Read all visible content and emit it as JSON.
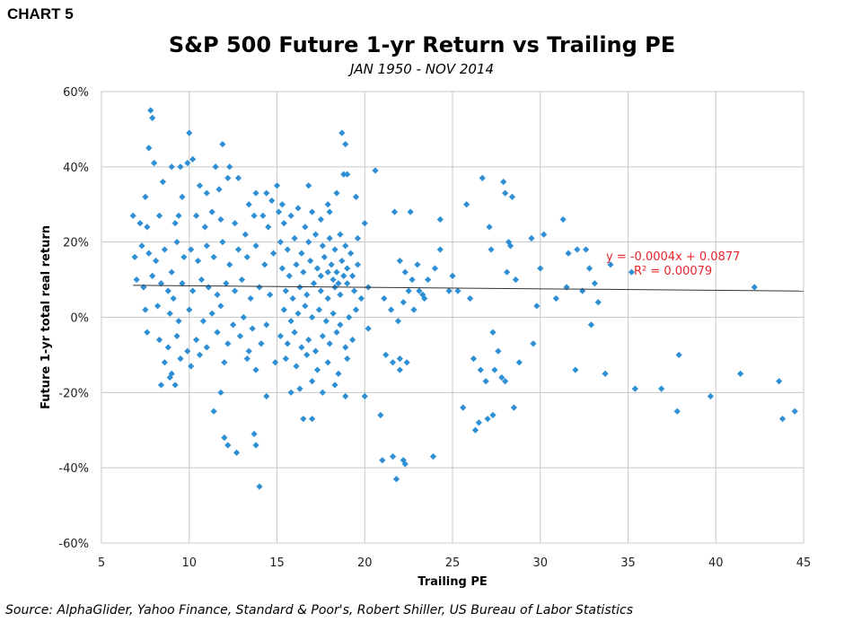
{
  "header": {
    "chart_label": "CHART 5",
    "title": "S&P 500 Future 1-yr Return vs Trailing PE",
    "subtitle": "JAN 1950 - NOV 2014"
  },
  "footer": {
    "source": "Source: AlphaGlider, Yahoo Finance, Standard & Poor's, Robert Shiller, US Bureau of Labor Statistics"
  },
  "colors": {
    "points": "#2e8fd4",
    "trendline": "#333333",
    "trend_text": "#e8262b",
    "grid": "#c8c8c8"
  },
  "chart_data": {
    "type": "scatter",
    "title": "S&P 500 Future 1-yr Return vs Trailing PE",
    "subtitle": "JAN 1950 - NOV 2014",
    "xlabel": "Trailing PE",
    "ylabel": "Future 1-yr total real return",
    "xlim": [
      5,
      45
    ],
    "ylim": [
      -0.6,
      0.6
    ],
    "x_ticks": [
      "5",
      "10",
      "15",
      "20",
      "25",
      "30",
      "35",
      "40",
      "45"
    ],
    "y_ticks": [
      "60%",
      "40%",
      "20%",
      "0%",
      "-20%",
      "-40%",
      "-60%"
    ],
    "grid": true,
    "marker": "diamond",
    "trendline": {
      "slope": -0.0004,
      "intercept": 0.0877,
      "equation": "y = -0.0004x + 0.0877",
      "r_squared": "R² = 0.00079"
    },
    "points": [
      [
        7.8,
        0.55
      ],
      [
        7.9,
        0.53
      ],
      [
        10.0,
        0.49
      ],
      [
        7.7,
        0.45
      ],
      [
        11.9,
        0.46
      ],
      [
        8.0,
        0.41
      ],
      [
        9.5,
        0.4
      ],
      [
        9.9,
        0.41
      ],
      [
        10.2,
        0.42
      ],
      [
        11.5,
        0.4
      ],
      [
        12.3,
        0.4
      ],
      [
        8.5,
        0.36
      ],
      [
        9.0,
        0.4
      ],
      [
        12.8,
        0.37
      ],
      [
        7.5,
        0.32
      ],
      [
        9.6,
        0.32
      ],
      [
        10.6,
        0.35
      ],
      [
        11.0,
        0.33
      ],
      [
        11.7,
        0.34
      ],
      [
        12.2,
        0.37
      ],
      [
        13.4,
        0.3
      ],
      [
        13.8,
        0.33
      ],
      [
        14.4,
        0.33
      ],
      [
        15.0,
        0.35
      ],
      [
        14.7,
        0.31
      ],
      [
        15.3,
        0.3
      ],
      [
        6.8,
        0.27
      ],
      [
        7.2,
        0.25
      ],
      [
        7.6,
        0.24
      ],
      [
        8.3,
        0.27
      ],
      [
        9.2,
        0.25
      ],
      [
        9.4,
        0.27
      ],
      [
        10.4,
        0.27
      ],
      [
        10.9,
        0.24
      ],
      [
        11.3,
        0.28
      ],
      [
        11.8,
        0.26
      ],
      [
        12.6,
        0.25
      ],
      [
        13.2,
        0.22
      ],
      [
        13.7,
        0.27
      ],
      [
        14.2,
        0.27
      ],
      [
        14.5,
        0.24
      ],
      [
        6.9,
        0.16
      ],
      [
        7.3,
        0.19
      ],
      [
        7.7,
        0.17
      ],
      [
        8.1,
        0.15
      ],
      [
        8.6,
        0.18
      ],
      [
        9.0,
        0.12
      ],
      [
        9.3,
        0.2
      ],
      [
        9.7,
        0.16
      ],
      [
        10.1,
        0.18
      ],
      [
        10.5,
        0.15
      ],
      [
        11.0,
        0.19
      ],
      [
        11.4,
        0.16
      ],
      [
        11.9,
        0.2
      ],
      [
        12.3,
        0.14
      ],
      [
        12.8,
        0.18
      ],
      [
        13.3,
        0.16
      ],
      [
        13.8,
        0.19
      ],
      [
        14.3,
        0.14
      ],
      [
        14.8,
        0.17
      ],
      [
        7.0,
        0.1
      ],
      [
        7.4,
        0.08
      ],
      [
        7.9,
        0.11
      ],
      [
        8.4,
        0.09
      ],
      [
        8.8,
        0.07
      ],
      [
        9.1,
        0.05
      ],
      [
        9.6,
        0.09
      ],
      [
        10.2,
        0.07
      ],
      [
        10.7,
        0.1
      ],
      [
        11.1,
        0.08
      ],
      [
        11.6,
        0.06
      ],
      [
        12.1,
        0.09
      ],
      [
        12.6,
        0.07
      ],
      [
        13.0,
        0.1
      ],
      [
        13.5,
        0.05
      ],
      [
        14.0,
        0.08
      ],
      [
        14.6,
        0.06
      ],
      [
        7.5,
        0.02
      ],
      [
        8.2,
        0.03
      ],
      [
        8.9,
        0.01
      ],
      [
        9.4,
        -0.01
      ],
      [
        10.0,
        0.02
      ],
      [
        10.8,
        -0.01
      ],
      [
        11.3,
        0.01
      ],
      [
        11.8,
        0.03
      ],
      [
        12.5,
        -0.02
      ],
      [
        13.1,
        0.0
      ],
      [
        13.6,
        -0.03
      ],
      [
        14.4,
        -0.02
      ],
      [
        7.6,
        -0.04
      ],
      [
        8.3,
        -0.06
      ],
      [
        8.8,
        -0.08
      ],
      [
        9.3,
        -0.05
      ],
      [
        9.9,
        -0.09
      ],
      [
        10.4,
        -0.06
      ],
      [
        11.0,
        -0.08
      ],
      [
        11.6,
        -0.04
      ],
      [
        12.2,
        -0.07
      ],
      [
        12.9,
        -0.05
      ],
      [
        13.4,
        -0.09
      ],
      [
        14.1,
        -0.07
      ],
      [
        8.6,
        -0.12
      ],
      [
        9.0,
        -0.15
      ],
      [
        9.5,
        -0.11
      ],
      [
        10.1,
        -0.13
      ],
      [
        10.6,
        -0.1
      ],
      [
        12.0,
        -0.12
      ],
      [
        13.3,
        -0.11
      ],
      [
        13.8,
        -0.14
      ],
      [
        14.9,
        -0.12
      ],
      [
        8.4,
        -0.18
      ],
      [
        8.9,
        -0.16
      ],
      [
        9.2,
        -0.18
      ],
      [
        11.8,
        -0.2
      ],
      [
        14.4,
        -0.21
      ],
      [
        11.4,
        -0.25
      ],
      [
        12.0,
        -0.32
      ],
      [
        12.2,
        -0.34
      ],
      [
        12.7,
        -0.36
      ],
      [
        13.7,
        -0.31
      ],
      [
        13.8,
        -0.34
      ],
      [
        14.0,
        -0.45
      ],
      [
        15.1,
        0.28
      ],
      [
        15.4,
        0.25
      ],
      [
        15.8,
        0.27
      ],
      [
        16.2,
        0.29
      ],
      [
        16.6,
        0.24
      ],
      [
        17.0,
        0.28
      ],
      [
        17.5,
        0.26
      ],
      [
        17.9,
        0.3
      ],
      [
        16.8,
        0.35
      ],
      [
        18.0,
        0.28
      ],
      [
        18.4,
        0.33
      ],
      [
        18.8,
        0.38
      ],
      [
        19.0,
        0.38
      ],
      [
        19.5,
        0.32
      ],
      [
        18.7,
        0.49
      ],
      [
        18.9,
        0.46
      ],
      [
        15.2,
        0.2
      ],
      [
        15.6,
        0.18
      ],
      [
        16.0,
        0.21
      ],
      [
        16.4,
        0.17
      ],
      [
        16.8,
        0.2
      ],
      [
        17.2,
        0.22
      ],
      [
        17.6,
        0.19
      ],
      [
        18.0,
        0.21
      ],
      [
        18.3,
        0.18
      ],
      [
        18.6,
        0.22
      ],
      [
        18.9,
        0.19
      ],
      [
        19.2,
        0.17
      ],
      [
        19.6,
        0.21
      ],
      [
        20.0,
        0.25
      ],
      [
        15.3,
        0.13
      ],
      [
        15.7,
        0.11
      ],
      [
        16.1,
        0.14
      ],
      [
        16.5,
        0.12
      ],
      [
        16.9,
        0.15
      ],
      [
        17.3,
        0.13
      ],
      [
        17.7,
        0.16
      ],
      [
        18.1,
        0.14
      ],
      [
        18.4,
        0.12
      ],
      [
        18.7,
        0.15
      ],
      [
        19.0,
        0.13
      ],
      [
        19.3,
        0.11
      ],
      [
        19.6,
        0.14
      ],
      [
        17.5,
        0.11
      ],
      [
        17.9,
        0.12
      ],
      [
        18.2,
        0.1
      ],
      [
        18.5,
        0.09
      ],
      [
        18.8,
        0.11
      ],
      [
        15.5,
        0.07
      ],
      [
        15.9,
        0.05
      ],
      [
        16.3,
        0.08
      ],
      [
        16.7,
        0.06
      ],
      [
        17.1,
        0.09
      ],
      [
        17.5,
        0.07
      ],
      [
        17.9,
        0.05
      ],
      [
        18.3,
        0.08
      ],
      [
        18.6,
        0.06
      ],
      [
        19.0,
        0.09
      ],
      [
        19.4,
        0.07
      ],
      [
        19.8,
        0.05
      ],
      [
        20.2,
        0.08
      ],
      [
        15.4,
        0.02
      ],
      [
        15.8,
        -0.01
      ],
      [
        16.2,
        0.01
      ],
      [
        16.6,
        0.03
      ],
      [
        17.0,
        0.0
      ],
      [
        17.4,
        0.02
      ],
      [
        17.8,
        -0.01
      ],
      [
        18.2,
        0.01
      ],
      [
        18.6,
        -0.02
      ],
      [
        19.1,
        0.0
      ],
      [
        19.5,
        0.02
      ],
      [
        15.2,
        -0.05
      ],
      [
        15.6,
        -0.07
      ],
      [
        16.0,
        -0.04
      ],
      [
        16.4,
        -0.08
      ],
      [
        16.8,
        -0.06
      ],
      [
        17.2,
        -0.09
      ],
      [
        17.6,
        -0.05
      ],
      [
        18.0,
        -0.07
      ],
      [
        18.4,
        -0.04
      ],
      [
        18.9,
        -0.08
      ],
      [
        19.3,
        -0.06
      ],
      [
        15.5,
        -0.11
      ],
      [
        16.1,
        -0.13
      ],
      [
        16.7,
        -0.1
      ],
      [
        17.3,
        -0.14
      ],
      [
        17.9,
        -0.12
      ],
      [
        18.5,
        -0.15
      ],
      [
        19.0,
        -0.11
      ],
      [
        16.3,
        -0.19
      ],
      [
        17.0,
        -0.17
      ],
      [
        17.6,
        -0.2
      ],
      [
        18.3,
        -0.18
      ],
      [
        18.9,
        -0.21
      ],
      [
        15.8,
        -0.2
      ],
      [
        16.5,
        -0.27
      ],
      [
        17.0,
        -0.27
      ],
      [
        20.0,
        -0.21
      ],
      [
        20.6,
        0.39
      ],
      [
        20.2,
        -0.03
      ],
      [
        20.9,
        -0.26
      ],
      [
        21.0,
        -0.38
      ],
      [
        21.6,
        -0.37
      ],
      [
        21.8,
        -0.43
      ],
      [
        22.2,
        -0.38
      ],
      [
        22.3,
        -0.39
      ],
      [
        21.7,
        0.28
      ],
      [
        22.0,
        0.15
      ],
      [
        22.3,
        0.12
      ],
      [
        22.6,
        0.28
      ],
      [
        22.7,
        0.1
      ],
      [
        23.0,
        0.14
      ],
      [
        23.3,
        0.06
      ],
      [
        23.6,
        0.1
      ],
      [
        24.0,
        0.13
      ],
      [
        24.3,
        0.18
      ],
      [
        24.3,
        0.26
      ],
      [
        21.1,
        0.05
      ],
      [
        21.5,
        0.02
      ],
      [
        21.9,
        -0.01
      ],
      [
        22.2,
        0.04
      ],
      [
        22.5,
        0.07
      ],
      [
        22.8,
        0.02
      ],
      [
        23.1,
        0.07
      ],
      [
        23.4,
        0.05
      ],
      [
        21.2,
        -0.1
      ],
      [
        21.6,
        -0.12
      ],
      [
        22.0,
        -0.14
      ],
      [
        22.4,
        -0.12
      ],
      [
        22.0,
        -0.11
      ],
      [
        23.9,
        -0.37
      ],
      [
        25.0,
        0.11
      ],
      [
        24.8,
        0.07
      ],
      [
        25.3,
        0.07
      ],
      [
        25.6,
        -0.24
      ],
      [
        25.8,
        0.3
      ],
      [
        26.0,
        0.05
      ],
      [
        26.2,
        -0.11
      ],
      [
        26.3,
        -0.3
      ],
      [
        26.6,
        -0.14
      ],
      [
        26.7,
        0.37
      ],
      [
        26.9,
        -0.17
      ],
      [
        27.0,
        -0.27
      ],
      [
        27.1,
        0.24
      ],
      [
        27.3,
        -0.04
      ],
      [
        27.4,
        -0.14
      ],
      [
        27.6,
        -0.09
      ],
      [
        27.8,
        -0.16
      ],
      [
        27.9,
        0.36
      ],
      [
        28.0,
        0.33
      ],
      [
        28.0,
        -0.17
      ],
      [
        28.2,
        0.2
      ],
      [
        28.3,
        0.19
      ],
      [
        28.4,
        0.32
      ],
      [
        28.5,
        -0.24
      ],
      [
        28.6,
        0.1
      ],
      [
        28.8,
        -0.12
      ],
      [
        27.3,
        -0.26
      ],
      [
        26.5,
        -0.28
      ],
      [
        27.2,
        0.18
      ],
      [
        28.1,
        0.12
      ],
      [
        29.5,
        0.21
      ],
      [
        29.6,
        -0.07
      ],
      [
        29.8,
        0.03
      ],
      [
        30.0,
        0.13
      ],
      [
        30.2,
        0.22
      ],
      [
        30.9,
        0.05
      ],
      [
        31.3,
        0.26
      ],
      [
        31.5,
        0.08
      ],
      [
        31.6,
        0.17
      ],
      [
        32.1,
        0.18
      ],
      [
        32.0,
        -0.14
      ],
      [
        32.4,
        0.07
      ],
      [
        32.6,
        0.18
      ],
      [
        32.8,
        0.13
      ],
      [
        32.9,
        -0.02
      ],
      [
        33.1,
        0.09
      ],
      [
        33.3,
        0.04
      ],
      [
        33.7,
        -0.15
      ],
      [
        34.0,
        0.14
      ],
      [
        35.2,
        0.12
      ],
      [
        35.4,
        -0.19
      ],
      [
        36.9,
        -0.19
      ],
      [
        37.8,
        -0.25
      ],
      [
        37.9,
        -0.1
      ],
      [
        39.7,
        -0.21
      ],
      [
        41.4,
        -0.15
      ],
      [
        42.2,
        0.08
      ],
      [
        43.6,
        -0.17
      ],
      [
        43.8,
        -0.27
      ],
      [
        44.5,
        -0.25
      ]
    ]
  }
}
